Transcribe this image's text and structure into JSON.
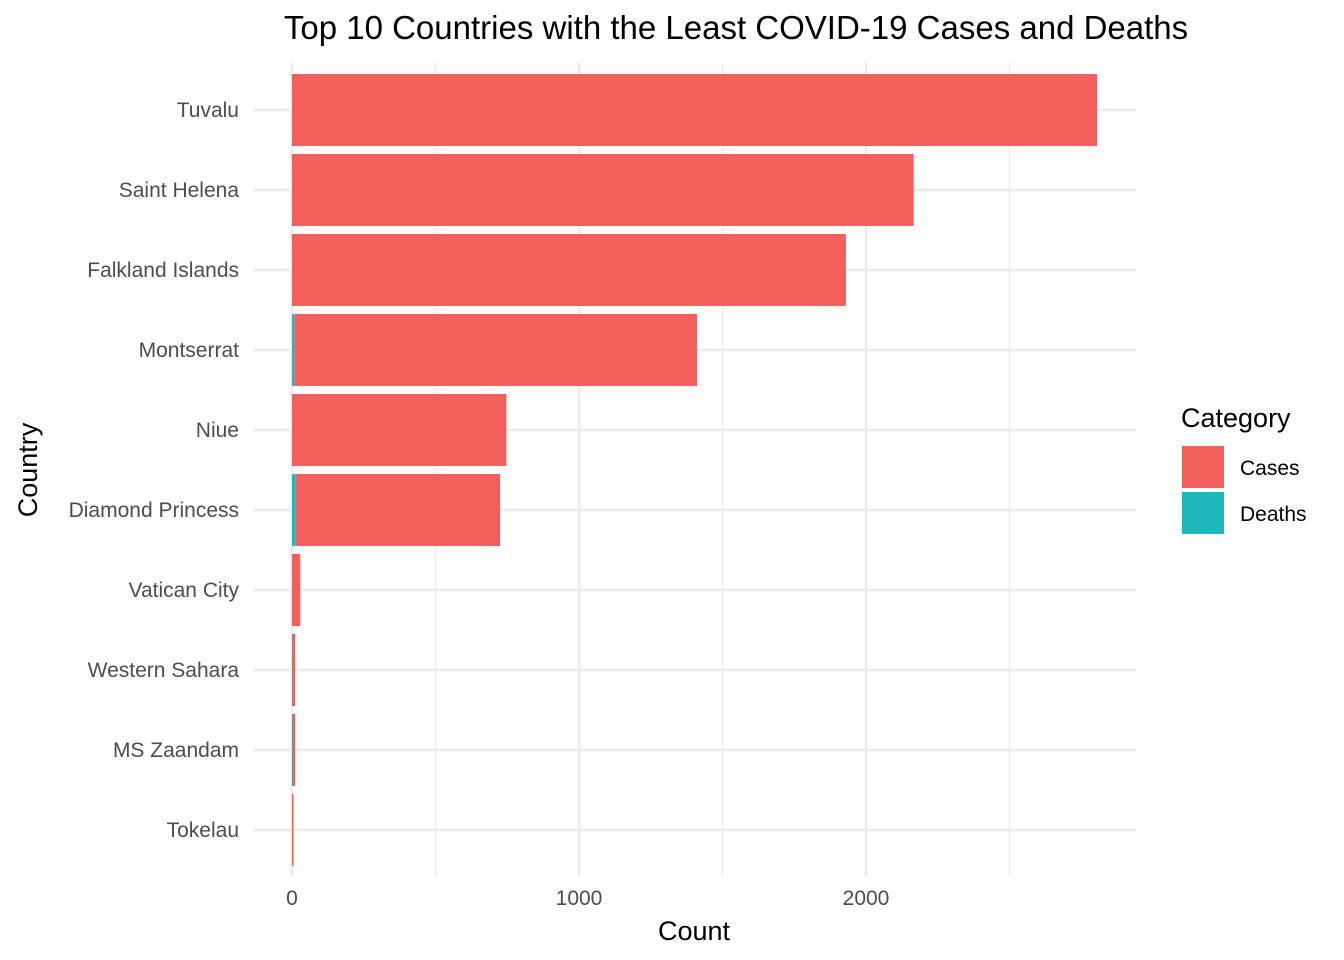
{
  "chart_data": {
    "type": "bar",
    "orientation": "horizontal",
    "stacked": true,
    "title": "Top 10 Countries with the Least COVID-19 Cases and Deaths",
    "xlabel": "Count",
    "ylabel": "Country",
    "xlim": [
      0,
      2800
    ],
    "xticks": [
      0,
      1000,
      2000
    ],
    "categories": [
      "Tuvalu",
      "Saint Helena",
      "Falkland Islands",
      "Montserrat",
      "Niue",
      "Diamond Princess",
      "Vatican City",
      "Western Sahara",
      "MS Zaandam",
      "Tokelau"
    ],
    "series": [
      {
        "name": "Deaths",
        "color": "#1CB8BC",
        "values": [
          0,
          0,
          0,
          8,
          0,
          13,
          0,
          1,
          2,
          0
        ]
      },
      {
        "name": "Cases",
        "color": "#F3605C",
        "values": [
          2805,
          2166,
          1930,
          1403,
          747,
          712,
          29,
          10,
          9,
          5
        ]
      }
    ],
    "grid": true,
    "legend": {
      "title": "Category",
      "position": "right",
      "entries": [
        "Cases",
        "Deaths"
      ]
    }
  }
}
